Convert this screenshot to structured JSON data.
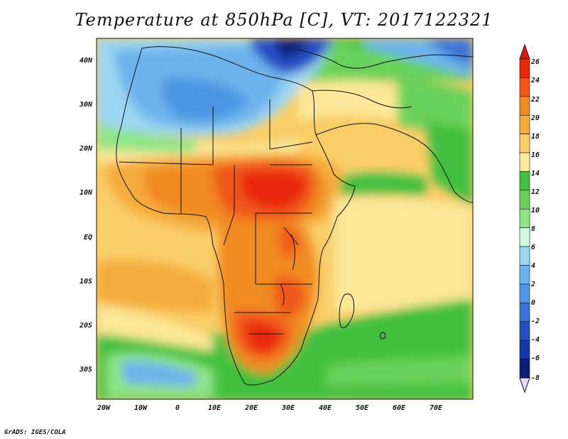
{
  "title": "Temperature at 850hPa [C], VT: 2017122321",
  "credit": "GrADS: IGES/COLA",
  "axes": {
    "lat_labels": [
      "40N",
      "30N",
      "20N",
      "10N",
      "EQ",
      "10S",
      "20S",
      "30S"
    ],
    "lon_labels": [
      "20W",
      "10W",
      "0",
      "10E",
      "20E",
      "30E",
      "40E",
      "50E",
      "60E",
      "70E"
    ]
  },
  "colorbar": {
    "labels": [
      "26",
      "24",
      "22",
      "20",
      "18",
      "16",
      "14",
      "12",
      "10",
      "8",
      "6",
      "4",
      "2",
      "0",
      "-2",
      "-4",
      "-6",
      "-8"
    ],
    "colors": [
      "#e8270b",
      "#f0571a",
      "#f08a22",
      "#f5ab3c",
      "#f9cd68",
      "#fbe89a",
      "#43bf41",
      "#6ad15b",
      "#8fe486",
      "#d3f8e1",
      "#9cd6f2",
      "#6db4ec",
      "#4e95e3",
      "#3b72d9",
      "#2550c4",
      "#1436a6",
      "#0c1f78"
    ],
    "top_arrow_color": "#d81b0e",
    "bottom_arrow_color": "#e4dcf6"
  }
}
